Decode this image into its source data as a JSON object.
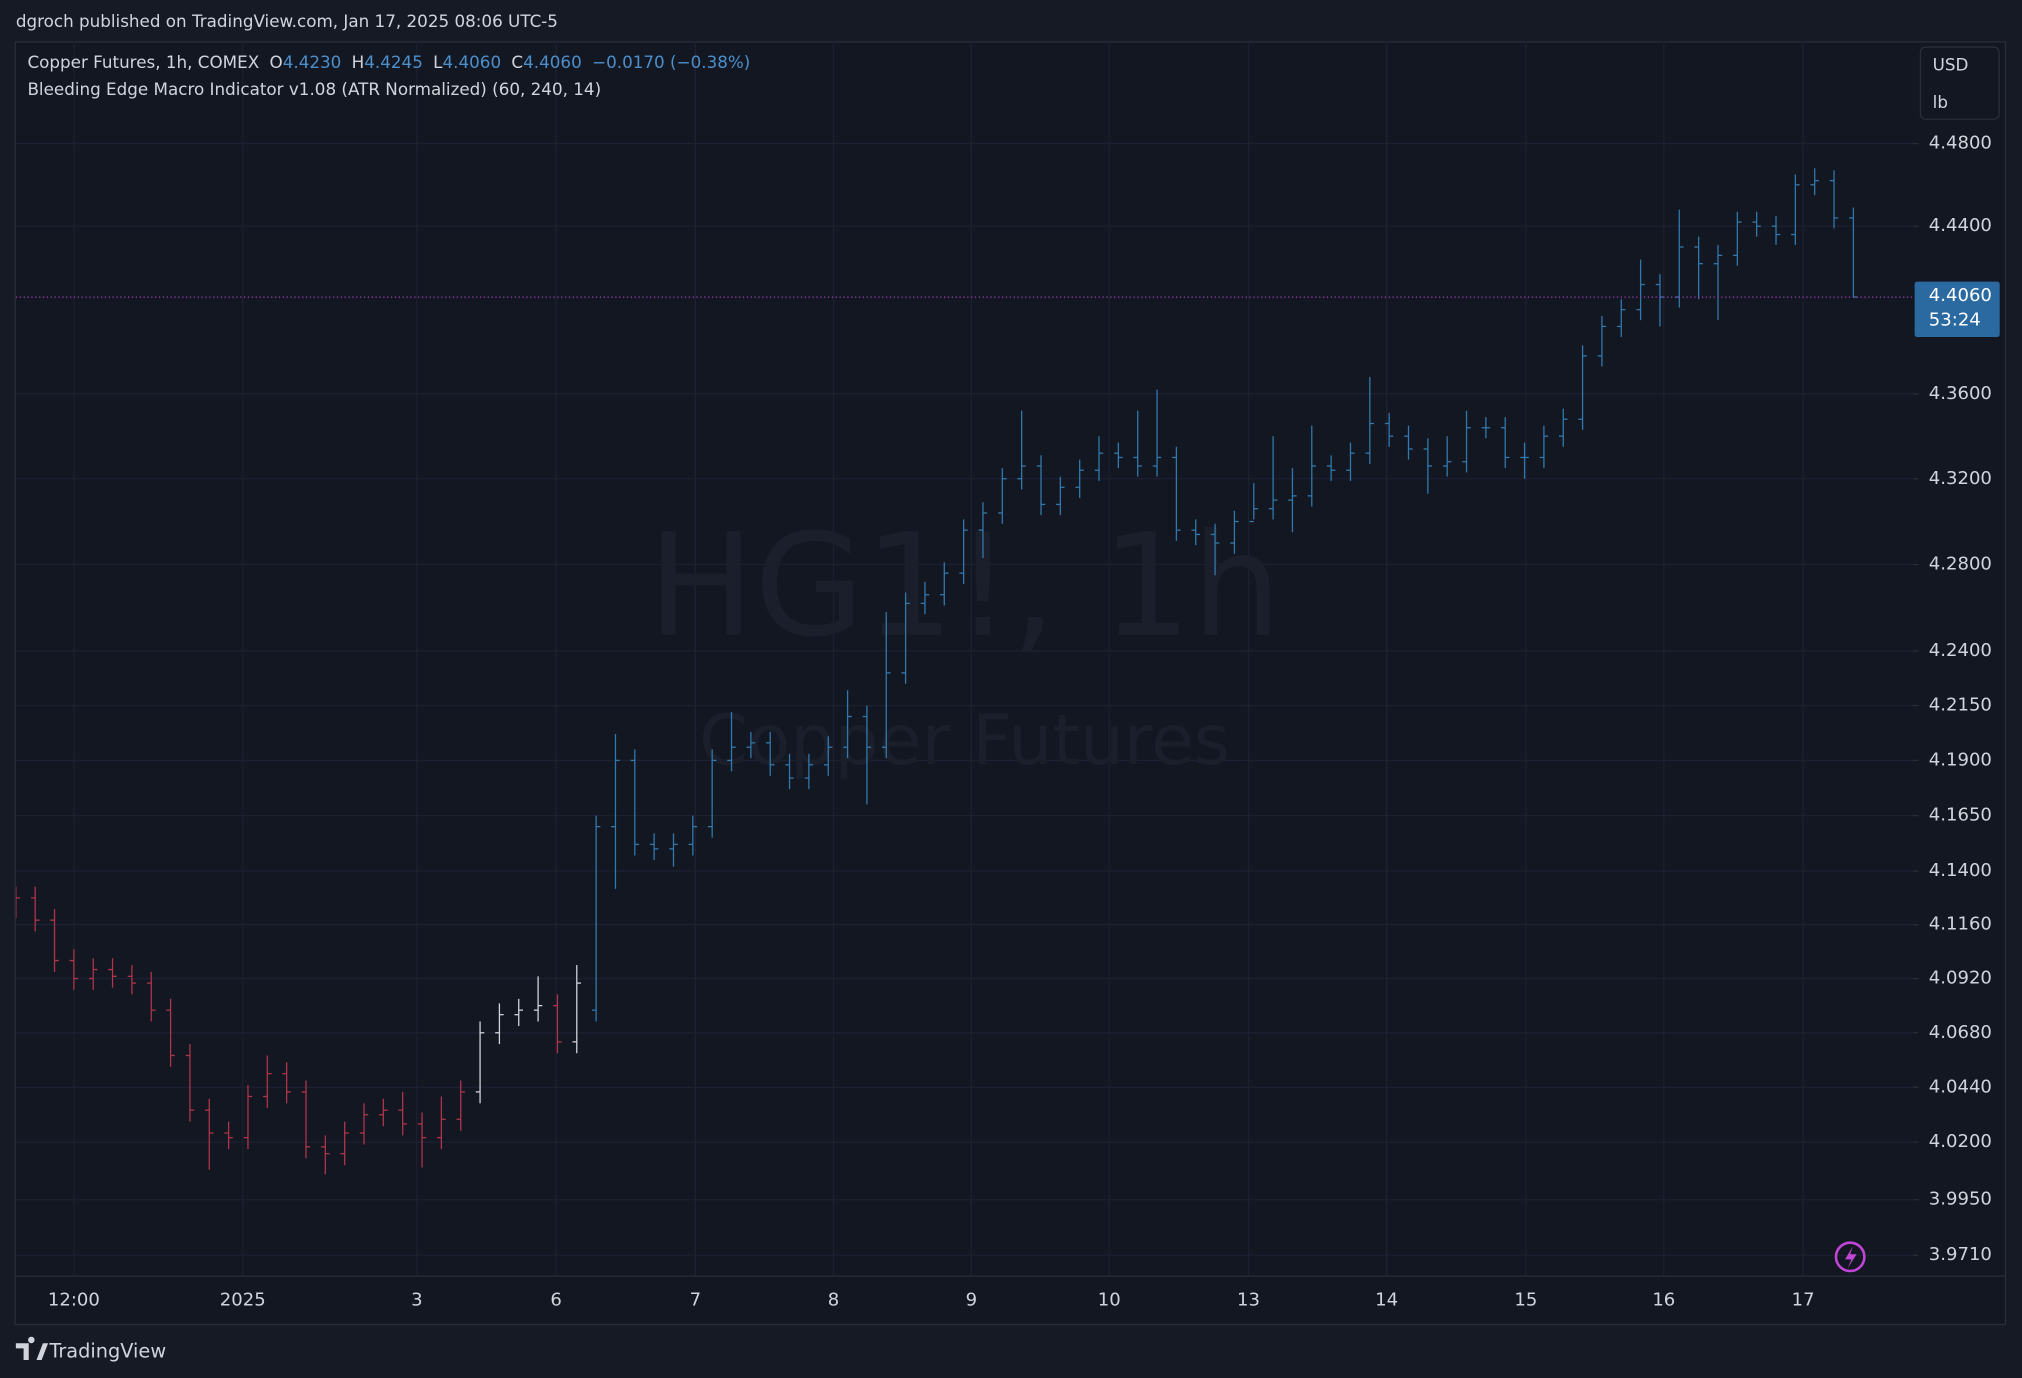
{
  "header": {
    "published": "dgroch published on TradingView.com, Jan 17, 2025 08:06 UTC-5"
  },
  "chart_data": {
    "type": "ohlc",
    "title": "Copper Futures, 1h, COMEX",
    "readout": [
      {
        "key": "O",
        "text": "4.4230"
      },
      {
        "key": "H",
        "text": "4.4245"
      },
      {
        "key": "L",
        "text": "4.4060"
      },
      {
        "key": "C",
        "text": "4.4060"
      }
    ],
    "change": "−0.0170 (−0.38%)",
    "indicator": "Bleeding Edge Macro Indicator v1.08 (ATR Normalized) (60, 240, 14)",
    "watermark": {
      "symbol": "HG1!, 1h",
      "name": "Copper Futures"
    },
    "currency": "USD",
    "unit": "lb",
    "open": [
      4.124,
      4.128,
      4.118,
      4.1,
      4.092,
      4.096,
      4.093,
      4.09,
      4.078,
      4.058,
      4.034,
      4.024,
      4.022,
      4.04,
      4.05,
      4.042,
      4.018,
      4.015,
      4.024,
      4.032,
      4.034,
      4.028,
      4.022,
      4.03,
      4.042,
      4.068,
      4.076,
      4.078,
      4.08,
      4.064,
      4.078,
      4.16,
      4.19,
      4.152,
      4.15,
      4.152,
      4.16,
      4.19,
      4.196,
      4.198,
      4.188,
      4.182,
      4.188,
      4.196,
      4.21,
      4.196,
      4.23,
      4.262,
      4.266,
      4.276,
      4.296,
      4.304,
      4.32,
      4.326,
      4.308,
      4.316,
      4.324,
      4.332,
      4.33,
      4.326,
      4.33,
      4.296,
      4.294,
      4.29,
      4.3,
      4.306,
      4.31,
      4.312,
      4.326,
      4.324,
      4.332,
      4.346,
      4.34,
      4.334,
      4.326,
      4.328,
      4.344,
      4.344,
      4.33,
      4.33,
      4.34,
      4.348,
      4.378,
      4.392,
      4.4,
      4.412,
      4.406,
      4.43,
      4.422,
      4.426,
      4.442,
      4.44,
      4.436,
      4.46,
      4.462,
      4.444
    ],
    "high": [
      4.133,
      4.133,
      4.123,
      4.105,
      4.101,
      4.101,
      4.098,
      4.095,
      4.083,
      4.063,
      4.039,
      4.029,
      4.045,
      4.058,
      4.055,
      4.047,
      4.023,
      4.029,
      4.037,
      4.039,
      4.042,
      4.033,
      4.04,
      4.047,
      4.073,
      4.081,
      4.083,
      4.093,
      4.085,
      4.098,
      4.165,
      4.202,
      4.195,
      4.157,
      4.157,
      4.165,
      4.195,
      4.212,
      4.203,
      4.203,
      4.193,
      4.193,
      4.201,
      4.222,
      4.215,
      4.258,
      4.267,
      4.272,
      4.281,
      4.301,
      4.309,
      4.325,
      4.352,
      4.331,
      4.321,
      4.329,
      4.34,
      4.337,
      4.352,
      4.362,
      4.335,
      4.301,
      4.299,
      4.305,
      4.318,
      4.34,
      4.325,
      4.345,
      4.331,
      4.337,
      4.368,
      4.351,
      4.345,
      4.339,
      4.34,
      4.352,
      4.349,
      4.349,
      4.337,
      4.345,
      4.353,
      4.383,
      4.397,
      4.405,
      4.424,
      4.417,
      4.448,
      4.435,
      4.431,
      4.447,
      4.447,
      4.445,
      4.465,
      4.468,
      4.467,
      4.449
    ],
    "low": [
      4.119,
      4.113,
      4.095,
      4.087,
      4.087,
      4.088,
      4.085,
      4.073,
      4.053,
      4.029,
      4.008,
      4.017,
      4.017,
      4.035,
      4.037,
      4.013,
      4.006,
      4.01,
      4.019,
      4.027,
      4.023,
      4.009,
      4.017,
      4.025,
      4.037,
      4.063,
      4.071,
      4.073,
      4.059,
      4.059,
      4.073,
      4.132,
      4.147,
      4.145,
      4.142,
      4.147,
      4.155,
      4.185,
      4.191,
      4.183,
      4.177,
      4.177,
      4.183,
      4.191,
      4.17,
      4.191,
      4.225,
      4.257,
      4.261,
      4.271,
      4.283,
      4.299,
      4.315,
      4.303,
      4.303,
      4.311,
      4.319,
      4.325,
      4.321,
      4.321,
      4.291,
      4.289,
      4.275,
      4.285,
      4.301,
      4.301,
      4.295,
      4.307,
      4.319,
      4.319,
      4.327,
      4.335,
      4.329,
      4.313,
      4.321,
      4.323,
      4.339,
      4.325,
      4.32,
      4.325,
      4.335,
      4.343,
      4.373,
      4.387,
      4.395,
      4.392,
      4.401,
      4.405,
      4.395,
      4.421,
      4.435,
      4.431,
      4.431,
      4.455,
      4.439,
      4.406
    ],
    "close": [
      4.128,
      4.118,
      4.1,
      4.092,
      4.096,
      4.093,
      4.09,
      4.078,
      4.058,
      4.034,
      4.024,
      4.022,
      4.04,
      4.05,
      4.042,
      4.018,
      4.015,
      4.024,
      4.032,
      4.034,
      4.028,
      4.022,
      4.03,
      4.042,
      4.068,
      4.076,
      4.078,
      4.08,
      4.064,
      4.09,
      4.16,
      4.19,
      4.152,
      4.15,
      4.152,
      4.16,
      4.19,
      4.196,
      4.198,
      4.188,
      4.182,
      4.188,
      4.196,
      4.21,
      4.196,
      4.23,
      4.262,
      4.266,
      4.276,
      4.296,
      4.304,
      4.32,
      4.326,
      4.308,
      4.316,
      4.324,
      4.332,
      4.33,
      4.326,
      4.33,
      4.296,
      4.294,
      4.29,
      4.3,
      4.306,
      4.31,
      4.312,
      4.326,
      4.324,
      4.332,
      4.346,
      4.34,
      4.334,
      4.326,
      4.328,
      4.344,
      4.344,
      4.33,
      4.33,
      4.34,
      4.348,
      4.378,
      4.392,
      4.4,
      4.412,
      4.406,
      4.43,
      4.422,
      4.426,
      4.442,
      4.44,
      4.436,
      4.46,
      4.462,
      4.444,
      4.406
    ],
    "colors": [
      "#b0344b",
      "#b0344b",
      "#b0344b",
      "#b0344b",
      "#b0344b",
      "#b0344b",
      "#b0344b",
      "#b0344b",
      "#b0344b",
      "#b0344b",
      "#b0344b",
      "#b0344b",
      "#b0344b",
      "#b0344b",
      "#b0344b",
      "#b0344b",
      "#b0344b",
      "#b0344b",
      "#b0344b",
      "#b0344b",
      "#b0344b",
      "#b0344b",
      "#b0344b",
      "#b0344b",
      "#d1d4dc",
      "#d1d4dc",
      "#d1d4dc",
      "#d1d4dc",
      "#b0344b",
      "#d1d4dc",
      "#3179ad",
      "#3179ad",
      "#3179ad",
      "#3179ad",
      "#3179ad",
      "#3179ad",
      "#3179ad",
      "#3179ad",
      "#3179ad",
      "#3179ad",
      "#3179ad",
      "#3179ad",
      "#3179ad",
      "#3179ad",
      "#3179ad",
      "#3179ad",
      "#3179ad",
      "#3179ad",
      "#3179ad",
      "#3179ad",
      "#3179ad",
      "#3179ad",
      "#3179ad",
      "#3179ad",
      "#3179ad",
      "#3179ad",
      "#3179ad",
      "#3179ad",
      "#3179ad",
      "#3179ad",
      "#3179ad",
      "#3179ad",
      "#3179ad",
      "#3179ad",
      "#3179ad",
      "#3179ad",
      "#3179ad",
      "#3179ad",
      "#3179ad",
      "#3179ad",
      "#3179ad",
      "#3179ad",
      "#3179ad",
      "#3179ad",
      "#3179ad",
      "#3179ad",
      "#3179ad",
      "#3179ad",
      "#3179ad",
      "#3179ad",
      "#3179ad",
      "#3179ad",
      "#3179ad",
      "#3179ad",
      "#3179ad",
      "#3179ad",
      "#3179ad",
      "#3179ad",
      "#3179ad",
      "#3179ad",
      "#3179ad",
      "#3179ad",
      "#3179ad",
      "#3179ad",
      "#3179ad",
      "#3179ad"
    ],
    "xlim": [
      0,
      98.1
    ],
    "xticks": [
      {
        "value": 3.0,
        "label": "12:00"
      },
      {
        "value": 11.73,
        "label": "2025"
      },
      {
        "value": 20.73,
        "label": "3"
      },
      {
        "value": 27.93,
        "label": "6"
      },
      {
        "value": 35.13,
        "label": "7"
      },
      {
        "value": 42.27,
        "label": "8"
      },
      {
        "value": 49.4,
        "label": "9"
      },
      {
        "value": 56.53,
        "label": "10"
      },
      {
        "value": 63.73,
        "label": "13"
      },
      {
        "value": 70.87,
        "label": "14"
      },
      {
        "value": 78.07,
        "label": "15"
      },
      {
        "value": 85.2,
        "label": "16"
      },
      {
        "value": 92.4,
        "label": "17"
      }
    ],
    "ylim": [
      3.962,
      4.53
    ],
    "log_scale": true,
    "yticks": [
      {
        "value": 4.48,
        "label": "4.4800"
      },
      {
        "value": 4.44,
        "label": "4.4400"
      },
      {
        "value": 4.36,
        "label": "4.3600"
      },
      {
        "value": 4.32,
        "label": "4.3200"
      },
      {
        "value": 4.28,
        "label": "4.2800"
      },
      {
        "value": 4.24,
        "label": "4.2400"
      },
      {
        "value": 4.215,
        "label": "4.2150"
      },
      {
        "value": 4.19,
        "label": "4.1900"
      },
      {
        "value": 4.165,
        "label": "4.1650"
      },
      {
        "value": 4.14,
        "label": "4.1400"
      },
      {
        "value": 4.116,
        "label": "4.1160"
      },
      {
        "value": 4.092,
        "label": "4.0920"
      },
      {
        "value": 4.068,
        "label": "4.0680"
      },
      {
        "value": 4.044,
        "label": "4.0440"
      },
      {
        "value": 4.02,
        "label": "4.0200"
      },
      {
        "value": 3.995,
        "label": "3.9950"
      },
      {
        "value": 3.971,
        "label": "3.9710"
      }
    ],
    "grid": true,
    "last_price": {
      "value": 4.406,
      "label": "4.4060"
    },
    "countdown": "53:24",
    "last_price_color": "#9c3fb8"
  },
  "footer": {
    "brand": "TradingView"
  }
}
